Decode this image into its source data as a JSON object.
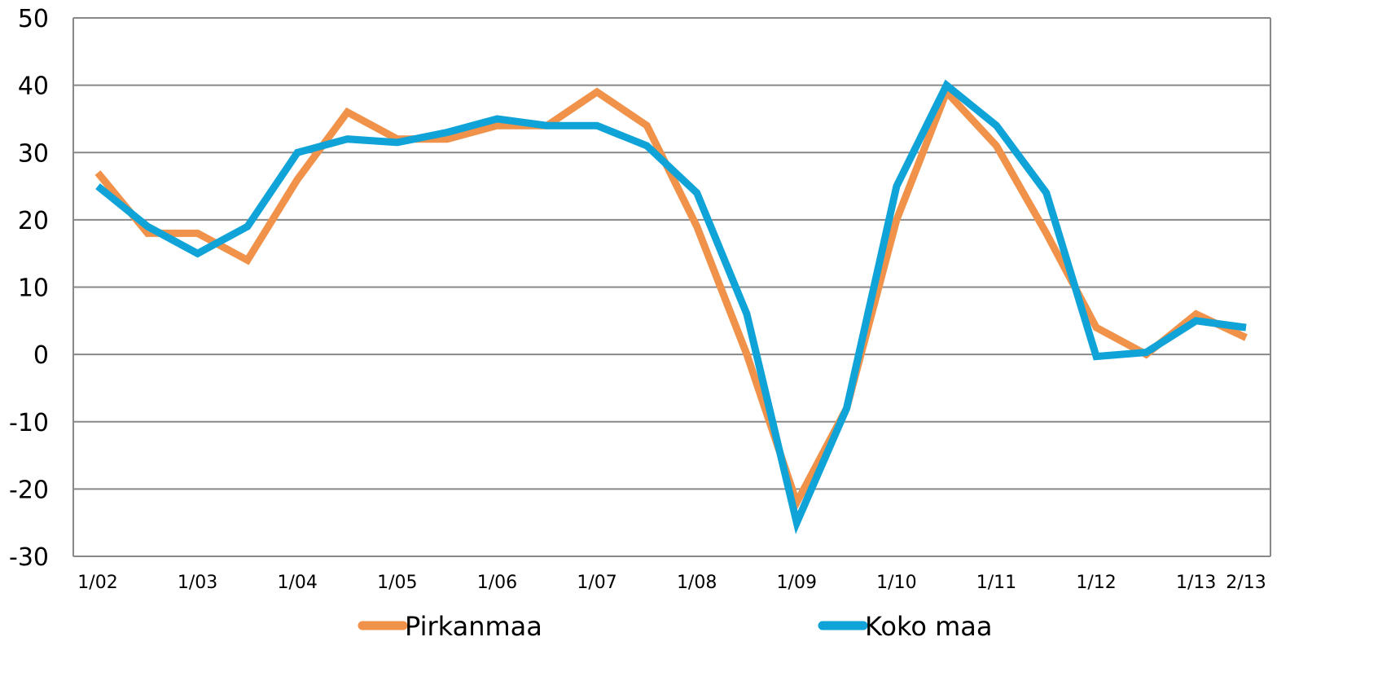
{
  "chart_data": {
    "type": "line",
    "title": "",
    "xlabel": "",
    "ylabel": "",
    "ylim": [
      -30,
      50
    ],
    "yticks": [
      50,
      40,
      30,
      20,
      10,
      0,
      -10,
      -20,
      -30
    ],
    "grid": true,
    "legend_position": "bottom",
    "x_tick_labels": [
      {
        "label": "1/02",
        "index": 0
      },
      {
        "label": "1/03",
        "index": 2
      },
      {
        "label": "1/04",
        "index": 4
      },
      {
        "label": "1/05",
        "index": 6
      },
      {
        "label": "1/06",
        "index": 8
      },
      {
        "label": "1/07",
        "index": 10
      },
      {
        "label": "1/08",
        "index": 12
      },
      {
        "label": "1/09",
        "index": 14
      },
      {
        "label": "1/10",
        "index": 16
      },
      {
        "label": "1/11",
        "index": 18
      },
      {
        "label": "1/12",
        "index": 20
      },
      {
        "label": "1/13",
        "index": 22
      },
      {
        "label": "2/13",
        "index": 23
      }
    ],
    "series": [
      {
        "name": "Pirkanmaa",
        "color": "#f0924a",
        "values": [
          27,
          18,
          18,
          14,
          26,
          36,
          32,
          32,
          34,
          34,
          39,
          34,
          19,
          0,
          -22,
          -8,
          20,
          39,
          31,
          18,
          4,
          0,
          6,
          2.5
        ]
      },
      {
        "name": "Koko maa",
        "color": "#0fa3d8",
        "values": [
          25,
          19,
          15,
          19,
          30,
          32,
          31.5,
          33,
          35,
          34,
          34,
          31,
          24,
          6,
          -25,
          -8,
          25,
          40,
          34,
          24,
          -0.3,
          0.3,
          5,
          4
        ]
      }
    ]
  }
}
